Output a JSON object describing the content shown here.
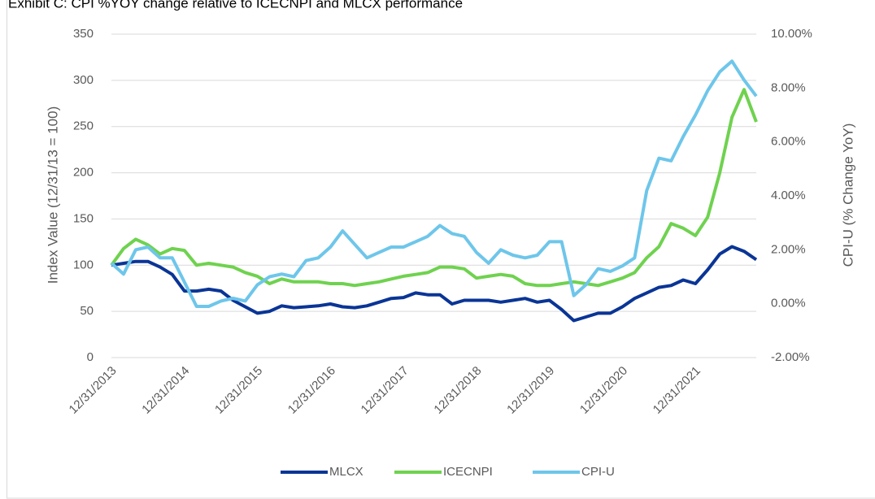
{
  "chart_data": {
    "type": "line",
    "title": "Exhibit C: CPI %YOY change relative to ICECNPI and MLCX performance",
    "y_label": "Index Value (12/31/13 = 100)",
    "y2_label": "CPI-U (% Change YoY)",
    "categories": [
      "12/31/2013",
      null,
      null,
      null,
      null,
      null,
      "12/31/2014",
      null,
      null,
      null,
      null,
      null,
      "12/31/2015",
      null,
      null,
      null,
      null,
      null,
      "12/31/2016",
      null,
      null,
      null,
      null,
      null,
      "12/31/2017",
      null,
      null,
      null,
      null,
      null,
      "12/31/2018",
      null,
      null,
      null,
      null,
      null,
      "12/31/2019",
      null,
      null,
      null,
      null,
      null,
      "12/31/2020",
      null,
      null,
      null,
      null,
      null,
      "12/31/2021",
      null,
      null,
      null,
      null,
      null
    ],
    "series": [
      {
        "name": "MLCX",
        "color": "#0a3596",
        "values": [
          100,
          102,
          104,
          104,
          98,
          90,
          72,
          72,
          74,
          72,
          62,
          55,
          48,
          50,
          56,
          54,
          55,
          56,
          58,
          55,
          54,
          56,
          60,
          64,
          65,
          70,
          68,
          68,
          58,
          62,
          62,
          62,
          60,
          62,
          64,
          60,
          62,
          52,
          40,
          44,
          48,
          48,
          55,
          64,
          70,
          76,
          78,
          84,
          80,
          95,
          112,
          120,
          115,
          106
        ]
      },
      {
        "name": "ICECNPI",
        "color": "#6fd24f",
        "values": [
          100,
          118,
          128,
          122,
          112,
          118,
          116,
          100,
          102,
          100,
          98,
          92,
          88,
          80,
          85,
          82,
          82,
          82,
          80,
          80,
          78,
          80,
          82,
          85,
          88,
          90,
          92,
          98,
          98,
          96,
          86,
          88,
          90,
          88,
          80,
          78,
          78,
          80,
          82,
          80,
          78,
          82,
          86,
          92,
          108,
          120,
          145,
          140,
          132,
          152,
          200,
          260,
          290,
          255
        ]
      },
      {
        "name": "CPI-U",
        "color": "#6ec6ea",
        "axis": "y2",
        "values": [
          1.5,
          1.1,
          2.0,
          2.1,
          1.7,
          1.7,
          0.8,
          -0.1,
          -0.1,
          0.1,
          0.2,
          0.1,
          0.7,
          1.0,
          1.1,
          1.0,
          1.6,
          1.7,
          2.1,
          2.7,
          2.2,
          1.7,
          1.9,
          2.1,
          2.1,
          2.3,
          2.5,
          2.9,
          2.6,
          2.5,
          1.9,
          1.5,
          2.0,
          1.8,
          1.7,
          1.8,
          2.3,
          2.3,
          0.3,
          0.7,
          1.3,
          1.2,
          1.4,
          1.7,
          4.2,
          5.4,
          5.3,
          6.2,
          7.0,
          7.9,
          8.6,
          9.0,
          8.3,
          7.7
        ]
      }
    ],
    "ylim": [
      0,
      350
    ],
    "yticks": [
      0,
      50,
      100,
      150,
      200,
      250,
      300,
      350
    ],
    "y2lim": [
      -2,
      10
    ],
    "y2ticks": [
      {
        "value": -2,
        "label": "-2.00%"
      },
      {
        "value": 0,
        "label": "0.00%"
      },
      {
        "value": 2,
        "label": "2.00%"
      },
      {
        "value": 4,
        "label": "4.00%"
      },
      {
        "value": 6,
        "label": "6.00%"
      },
      {
        "value": 8,
        "label": "8.00%"
      },
      {
        "value": 10,
        "label": "10.00%"
      }
    ],
    "grid": true,
    "legend": "bottom"
  }
}
